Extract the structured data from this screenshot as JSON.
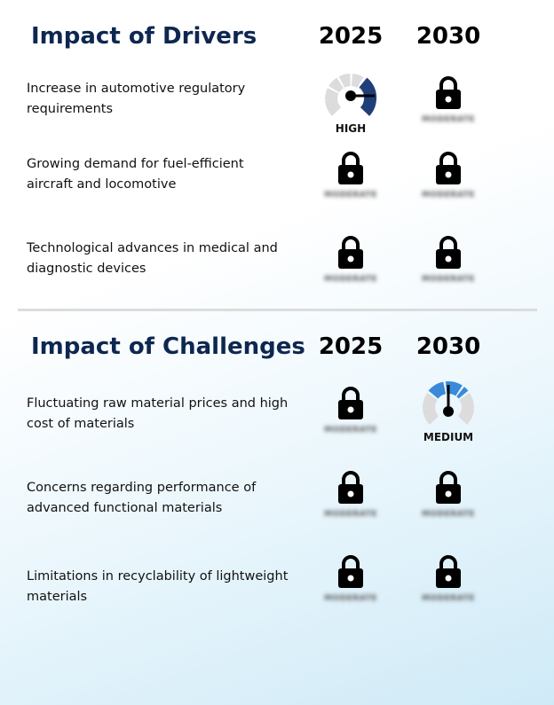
{
  "drivers": {
    "title": "Impact of Drivers",
    "year_2025": "2025",
    "year_2030": "2030",
    "rows": [
      {
        "label": "Increase in automotive regulatory requirements",
        "y2025": {
          "type": "gauge",
          "level": "HIGH"
        },
        "y2030": {
          "type": "lock",
          "hidden": "MODERATE"
        }
      },
      {
        "label": "Growing demand for fuel-efficient aircraft and locomotive",
        "y2025": {
          "type": "lock",
          "hidden": "MODERATE"
        },
        "y2030": {
          "type": "lock",
          "hidden": "MODERATE"
        }
      },
      {
        "label": "Technological advances in medical and diagnostic devices",
        "y2025": {
          "type": "lock",
          "hidden": "MODERATE"
        },
        "y2030": {
          "type": "lock",
          "hidden": "MODERATE"
        }
      }
    ]
  },
  "challenges": {
    "title": "Impact of Challenges",
    "year_2025": "2025",
    "year_2030": "2030",
    "rows": [
      {
        "label": "Fluctuating raw material prices and high cost of materials",
        "y2025": {
          "type": "lock",
          "hidden": "MODERATE"
        },
        "y2030": {
          "type": "gauge",
          "level": "MEDIUM"
        }
      },
      {
        "label": "Concerns regarding performance of advanced functional materials",
        "y2025": {
          "type": "lock",
          "hidden": "MODERATE"
        },
        "y2030": {
          "type": "lock",
          "hidden": "MODERATE"
        }
      },
      {
        "label": "Limitations in recyclability of lightweight materials",
        "y2025": {
          "type": "lock",
          "hidden": "MODERATE"
        },
        "y2030": {
          "type": "lock",
          "hidden": "MODERATE"
        }
      }
    ]
  },
  "colors": {
    "title": "#0e2750",
    "gauge_high": "#1f3f7a",
    "gauge_medium": "#3a8ad8",
    "gauge_track": "#dcdcdc"
  },
  "icons": {
    "lock": "lock-icon",
    "gauge": "gauge-icon"
  }
}
